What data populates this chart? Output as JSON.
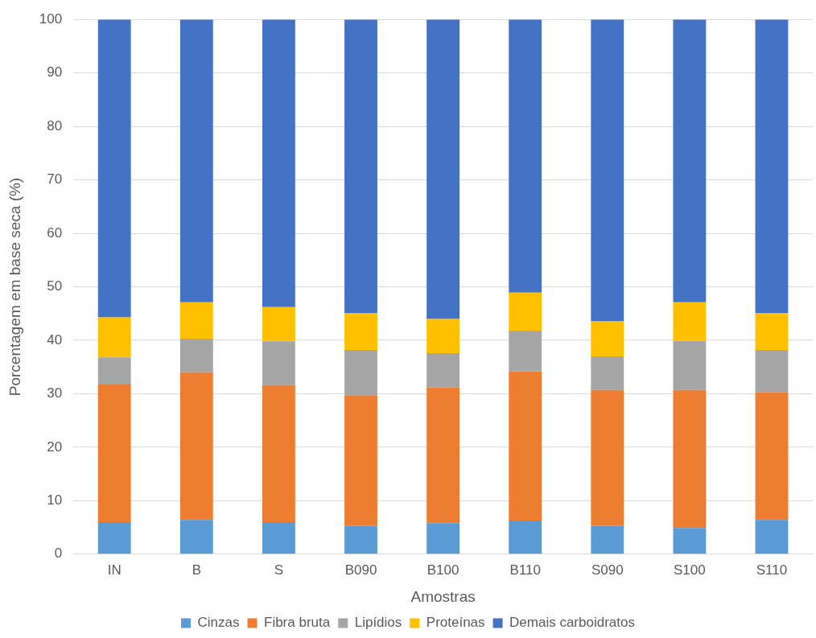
{
  "chart_data": {
    "type": "bar",
    "stacked": true,
    "xlabel": "Amostras",
    "ylabel": "Porcentagem em base seca (%)",
    "categories": [
      "IN",
      "B",
      "S",
      "B090",
      "B100",
      "B110",
      "S090",
      "S100",
      "S110"
    ],
    "series": [
      {
        "name": "Cinzas",
        "color": "#5b9bd5",
        "values": [
          6.0,
          6.4,
          6.0,
          5.3,
          5.8,
          6.3,
          5.3,
          4.9,
          6.4
        ]
      },
      {
        "name": "Fibra bruta",
        "color": "#ed7d31",
        "values": [
          25.7,
          27.6,
          25.6,
          24.3,
          25.4,
          27.9,
          25.4,
          25.8,
          23.9
        ]
      },
      {
        "name": "Lipídios",
        "color": "#a5a5a5",
        "values": [
          5.1,
          6.3,
          8.2,
          8.6,
          6.4,
          7.6,
          6.3,
          9.2,
          7.9
        ]
      },
      {
        "name": "Proteínas",
        "color": "#ffc000",
        "values": [
          7.5,
          6.8,
          6.4,
          6.9,
          6.4,
          7.1,
          6.6,
          7.2,
          6.9
        ]
      },
      {
        "name": "Demais carboidratos",
        "color": "#4472c4",
        "values": [
          55.7,
          52.9,
          53.8,
          54.9,
          56.0,
          51.1,
          56.4,
          52.9,
          54.9
        ]
      }
    ],
    "ylim": [
      0,
      100
    ],
    "yticks": [
      0,
      10,
      20,
      30,
      40,
      50,
      60,
      70,
      80,
      90,
      100
    ],
    "grid": "y",
    "legend": "bottom"
  }
}
